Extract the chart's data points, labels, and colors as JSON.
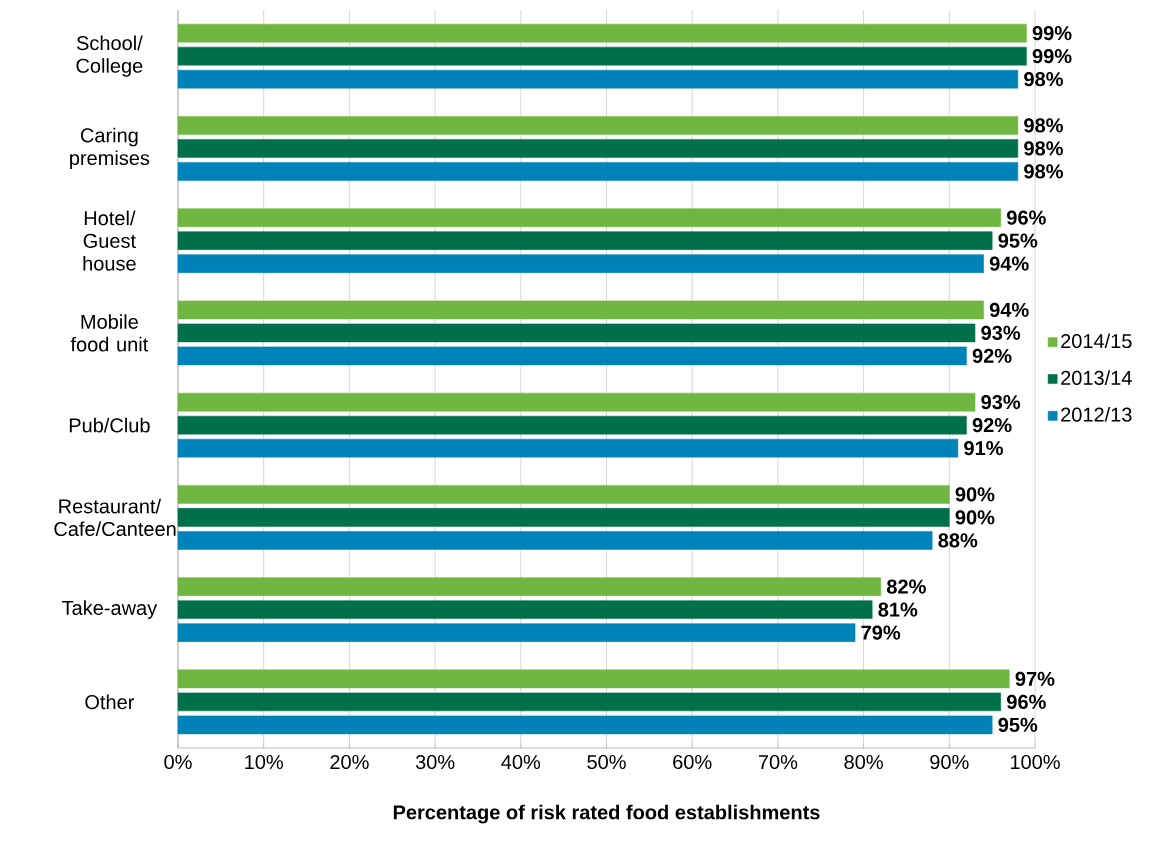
{
  "chart_data": {
    "type": "bar",
    "orientation": "horizontal",
    "categories": [
      "School/ College",
      "Caring premises",
      "Hotel/ Guest house",
      "Mobile food unit",
      "Pub/Club",
      "Restaurant/ Cafe/Canteen",
      "Take-away",
      "Other"
    ],
    "series": [
      {
        "name": "2014/15",
        "color": "#70b741",
        "values": [
          99,
          98,
          96,
          94,
          93,
          90,
          82,
          97
        ],
        "value_labels": [
          "99%",
          "98%",
          "96%",
          "94%",
          "93%",
          "90%",
          "82%",
          "97%"
        ]
      },
      {
        "name": "2013/14",
        "color": "#00704a",
        "values": [
          99,
          98,
          95,
          93,
          92,
          90,
          81,
          96
        ],
        "value_labels": [
          "99%",
          "98%",
          "95%",
          "93%",
          "92%",
          "90%",
          "81%",
          "96%"
        ]
      },
      {
        "name": "2012/13",
        "color": "#0083b8",
        "values": [
          98,
          98,
          94,
          92,
          91,
          88,
          79,
          95
        ],
        "value_labels": [
          "98%",
          "98%",
          "94%",
          "92%",
          "91%",
          "88%",
          "79%",
          "95%"
        ]
      }
    ],
    "xlim": [
      0,
      100
    ],
    "xticks": [
      {
        "value": 0,
        "label": "0%"
      },
      {
        "value": 10,
        "label": "10%"
      },
      {
        "value": 20,
        "label": "20%"
      },
      {
        "value": 30,
        "label": "30%"
      },
      {
        "value": 40,
        "label": "40%"
      },
      {
        "value": 50,
        "label": "50%"
      },
      {
        "value": 60,
        "label": "60%"
      },
      {
        "value": 70,
        "label": "70%"
      },
      {
        "value": 80,
        "label": "80%"
      },
      {
        "value": 90,
        "label": "90%"
      },
      {
        "value": 100,
        "label": "100%"
      }
    ],
    "xlabel": "Percentage of risk rated food establishments",
    "grid": "x",
    "legend": "right"
  }
}
